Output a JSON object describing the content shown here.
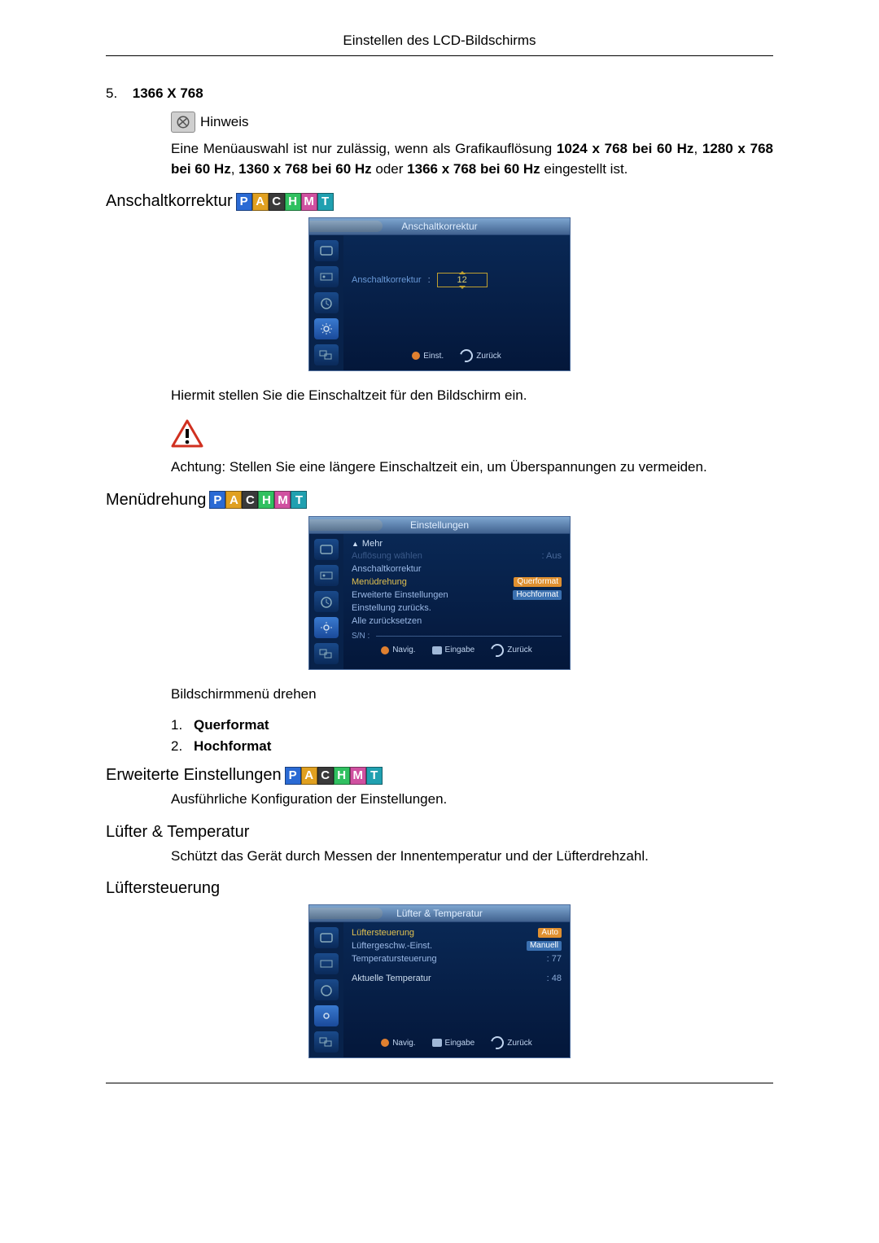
{
  "header": {
    "title": "Einstellen des LCD-Bildschirms"
  },
  "pachmt": {
    "letters": [
      "P",
      "A",
      "C",
      "H",
      "M",
      "T"
    ],
    "colors": [
      "#2a6ad4",
      "#e0a020",
      "#3a3a3a",
      "#30c060",
      "#d050a0",
      "#20a0b0"
    ]
  },
  "listTop": {
    "num": "5.",
    "text": "1366 X 768"
  },
  "hinweis": {
    "label": "Hinweis"
  },
  "para1_pre": "Eine Menüauswahl ist nur zulässig, wenn als Grafikauflösung ",
  "para1_b1": "1024 x 768 bei 60 Hz",
  "para1_mid1": ", ",
  "para1_b2": "1280 x 768 bei 60 Hz",
  "para1_mid2": ", ",
  "para1_b3": "1360 x 768 bei 60 Hz",
  "para1_mid3": " oder ",
  "para1_b4": "1366 x 768 bei 60 Hz",
  "para1_post": " eingestellt ist.",
  "sect": {
    "anschalt": "Anschaltkorrektur",
    "menud": "Menüdrehung",
    "erw": "Erweiterte Einstellungen",
    "luft": "Lüfter & Temperatur",
    "lufts": "Lüftersteuerung"
  },
  "osd1": {
    "title": "Anschaltkorrektur",
    "label": "Anschaltkorrektur",
    "value": "12",
    "foot_einst": "Einst.",
    "foot_zurueck": "Zurück"
  },
  "belowOsd1": "Hiermit stellen Sie die Einschaltzeit für den Bildschirm ein.",
  "achtung": "Achtung: Stellen Sie eine längere Einschaltzeit ein, um Überspannungen zu vermeiden.",
  "osd2": {
    "title": "Einstellungen",
    "mehr": "Mehr",
    "items": [
      {
        "label": "Auflösung wählen",
        "val": ": Aus",
        "dim": true
      },
      {
        "label": "Anschaltkorrektur",
        "val": ""
      },
      {
        "label": "Menüdrehung",
        "val": "Querformat",
        "sel": true,
        "hl": true
      },
      {
        "label": "Erweiterte Einstellungen",
        "val": "Hochformat",
        "hlblue": true
      },
      {
        "label": "Einstellung zurücks.",
        "val": ""
      },
      {
        "label": "Alle zurücksetzen",
        "val": ""
      }
    ],
    "sn": "S/N :",
    "foot_nav": "Navig.",
    "foot_enter": "Eingabe",
    "foot_back": "Zurück"
  },
  "afterOsd2": "Bildschirmmenü drehen",
  "list2": [
    {
      "num": "1.",
      "text": "Querformat"
    },
    {
      "num": "2.",
      "text": "Hochformat"
    }
  ],
  "afterErw": "Ausführliche Konfiguration der Einstellungen.",
  "afterLuft": "Schützt das Gerät durch Messen der Innentemperatur und der Lüfterdrehzahl.",
  "osd3": {
    "title": "Lüfter & Temperatur",
    "items": [
      {
        "label": "Lüftersteuerung",
        "val": "Auto",
        "hl": true,
        "sel": true
      },
      {
        "label": "Lüftergeschw.-Einst.",
        "val": "Manuell",
        "hlblue": true
      },
      {
        "label": "Temperatursteuerung",
        "val": ": 77"
      }
    ],
    "akt_label": "Aktuelle Temperatur",
    "akt_val": ": 48",
    "foot_nav": "Navig.",
    "foot_enter": "Eingabe",
    "foot_back": "Zurück"
  }
}
